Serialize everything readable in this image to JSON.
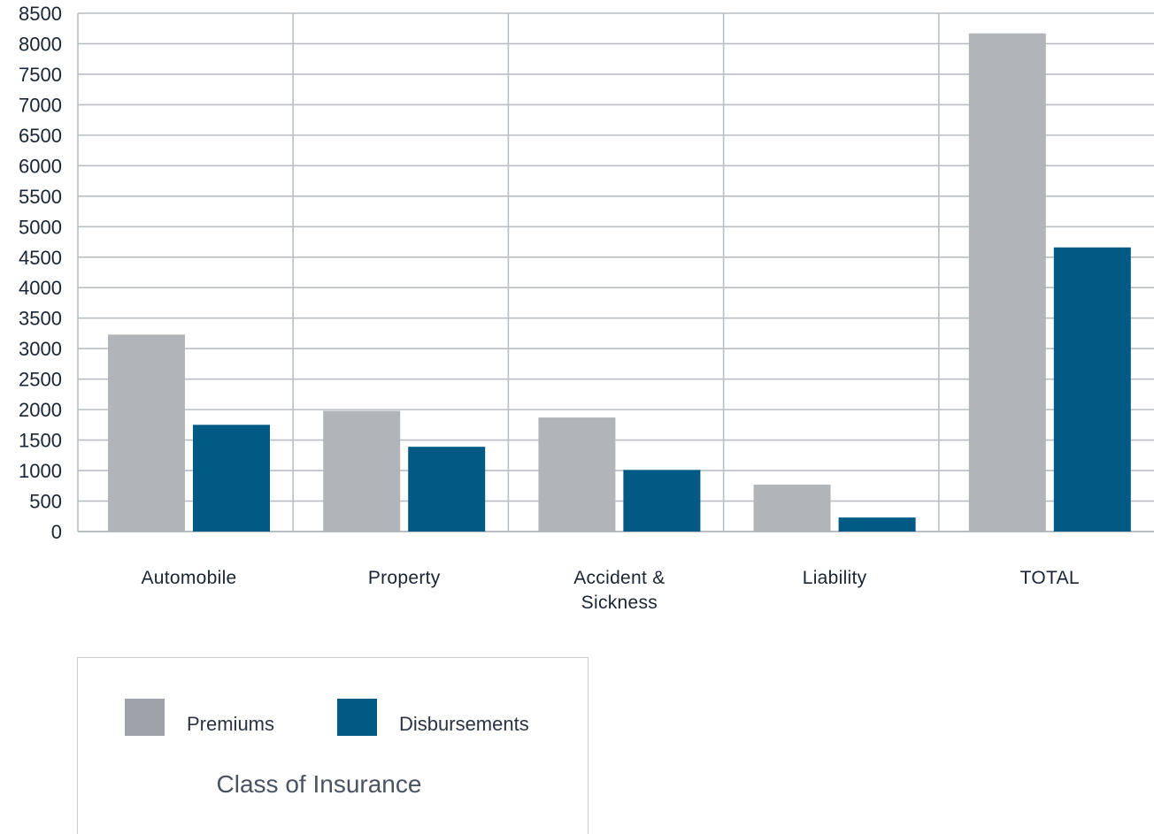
{
  "chart_data": {
    "type": "bar",
    "categories": [
      "Automobile",
      "Property",
      "Accident & Sickness",
      "Liability",
      "TOTAL"
    ],
    "category_lines": [
      [
        "Automobile"
      ],
      [
        "Property"
      ],
      [
        "Accident &",
        "Sickness"
      ],
      [
        "Liability"
      ],
      [
        "TOTAL"
      ]
    ],
    "series": [
      {
        "name": "Premiums",
        "color": "#b1b5ba",
        "values": [
          3230,
          1980,
          1870,
          770,
          8170
        ]
      },
      {
        "name": "Disbursements",
        "color": "#005a84",
        "values": [
          1750,
          1390,
          1010,
          230,
          4660
        ]
      }
    ],
    "ylim": [
      0,
      8500
    ],
    "ytick_step": 500,
    "yticks": [
      "0",
      "500",
      "1000",
      "1500",
      "2000",
      "2500",
      "3000",
      "3500",
      "4000",
      "4500",
      "5000",
      "5500",
      "6000",
      "6500",
      "7000",
      "7500",
      "8000",
      "8500"
    ],
    "grid": true,
    "legend_position": "bottom-left",
    "legend_title": "Class of Insurance",
    "legend_swatch_color_premiums": "#9ea3a9"
  }
}
